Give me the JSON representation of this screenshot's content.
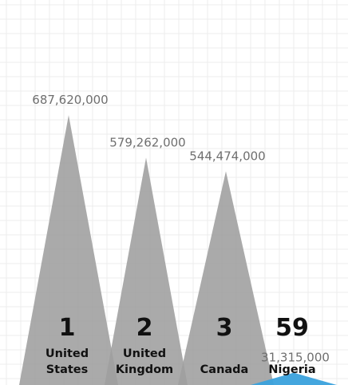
{
  "chart_data": {
    "type": "bar",
    "categories": [
      "United States",
      "United Kingdom",
      "Canada",
      "Nigeria"
    ],
    "values": [
      687620000,
      579262000,
      544474000,
      31315000
    ],
    "value_labels": [
      "687,620,000",
      "579,262,000",
      "544,474,000",
      "31,315,000"
    ],
    "ranks": [
      "1",
      "2",
      "3",
      "59"
    ],
    "name_lines": [
      [
        "United",
        "States"
      ],
      [
        "United",
        "Kingdom"
      ],
      [
        "Canada"
      ],
      [
        "Nigeria"
      ]
    ],
    "highlight": "Nigeria",
    "grid": true,
    "title": "",
    "xlabel": "",
    "ylabel": ""
  },
  "colors": {
    "bar": "#9e9e9e",
    "highlight": "#3aa1dc",
    "grid": "#ececec",
    "value_text": "#6f6f6f",
    "label_text": "#111111"
  }
}
